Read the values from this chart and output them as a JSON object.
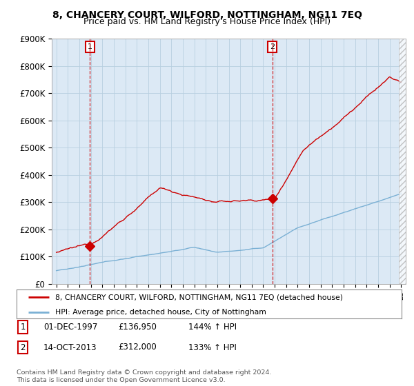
{
  "title": "8, CHANCERY COURT, WILFORD, NOTTINGHAM, NG11 7EQ",
  "subtitle": "Price paid vs. HM Land Registry's House Price Index (HPI)",
  "ylim": [
    0,
    900000
  ],
  "yticks": [
    0,
    100000,
    200000,
    300000,
    400000,
    500000,
    600000,
    700000,
    800000,
    900000
  ],
  "ytick_labels": [
    "£0",
    "£100K",
    "£200K",
    "£300K",
    "£400K",
    "£500K",
    "£600K",
    "£700K",
    "£800K",
    "£900K"
  ],
  "sale1_year": 1997.92,
  "sale1_price": 136950,
  "sale2_year": 2013.79,
  "sale2_price": 312000,
  "sale1_date": "01-DEC-1997",
  "sale2_date": "14-OCT-2013",
  "sale1_hpi": "144% ↑ HPI",
  "sale2_hpi": "133% ↑ HPI",
  "sale1_price_str": "£136,950",
  "sale2_price_str": "£312,000",
  "legend_line1": "8, CHANCERY COURT, WILFORD, NOTTINGHAM, NG11 7EQ (detached house)",
  "legend_line2": "HPI: Average price, detached house, City of Nottingham",
  "footer": "Contains HM Land Registry data © Crown copyright and database right 2024.\nThis data is licensed under the Open Government Licence v3.0.",
  "sale_color": "#cc0000",
  "hpi_color": "#7ab0d4",
  "chart_bg": "#dce9f5",
  "background_color": "#ffffff",
  "grid_color": "#b8cfe0",
  "title_fontsize": 10,
  "subtitle_fontsize": 9
}
